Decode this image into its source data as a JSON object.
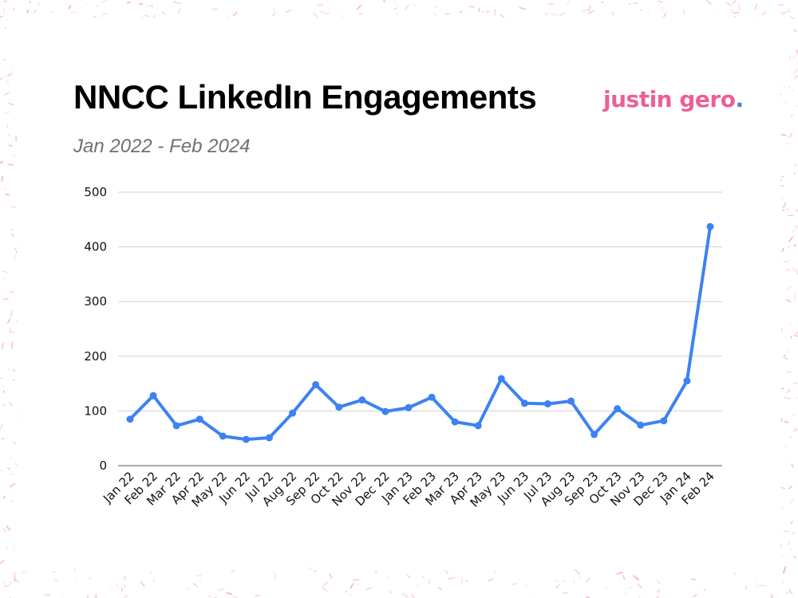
{
  "header": {
    "title": "NNCC LinkedIn Engagements",
    "subtitle": "Jan 2022 - Feb 2024",
    "brand": "justin gero",
    "brand_dot": "."
  },
  "colors": {
    "line": "#3d82f2",
    "grid": "#d0d0d0",
    "axis": "#555555",
    "brand": "#ec5f96",
    "brand_dot": "#3d82f2",
    "texture": "#f2a7c2"
  },
  "chart_data": {
    "type": "line",
    "title": "NNCC LinkedIn Engagements",
    "subtitle": "Jan 2022 - Feb 2024",
    "xlabel": "",
    "ylabel": "",
    "ylim": [
      0,
      500
    ],
    "yticks": [
      0,
      100,
      200,
      300,
      400,
      500
    ],
    "grid": true,
    "legend": "none",
    "categories": [
      "Jan 22",
      "Feb 22",
      "Mar 22",
      "Apr 22",
      "May 22",
      "Jun 22",
      "Jul 22",
      "Aug 22",
      "Sep 22",
      "Oct 22",
      "Nov 22",
      "Dec 22",
      "Jan 23",
      "Feb 23",
      "Mar 23",
      "Apr 23",
      "May 23",
      "Jun 23",
      "Jul 23",
      "Aug 23",
      "Sep 23",
      "Oct 23",
      "Nov 23",
      "Dec 23",
      "Jan 24",
      "Feb 24"
    ],
    "series": [
      {
        "values": [
          85,
          128,
          73,
          85,
          54,
          48,
          51,
          96,
          148,
          107,
          120,
          99,
          106,
          125,
          80,
          73,
          159,
          114,
          113,
          118,
          57,
          104,
          74,
          82,
          155,
          437
        ]
      }
    ]
  }
}
